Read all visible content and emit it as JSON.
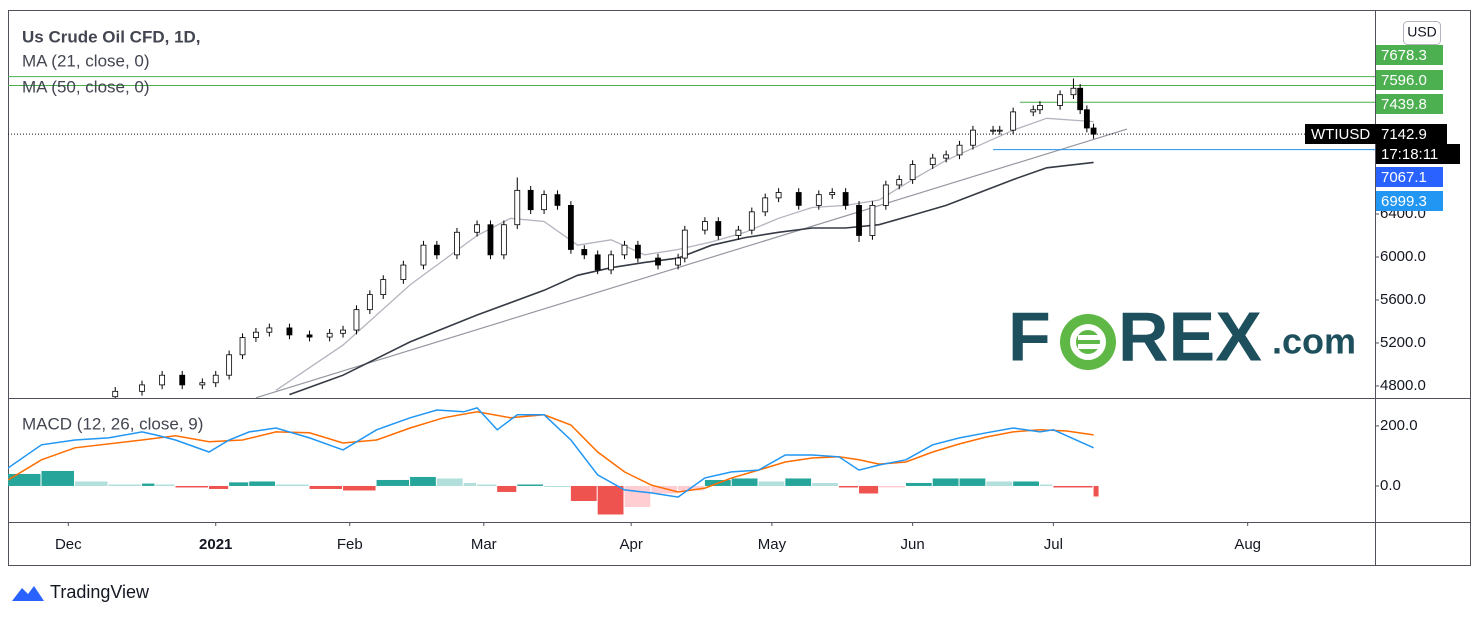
{
  "chart_data": [
    {
      "type": "candlestick",
      "title": "Us Crude Oil CFD, 1D,",
      "currency": "USD",
      "x": [
        16,
        20,
        23,
        26,
        29,
        31,
        33,
        35,
        37,
        39,
        42,
        45,
        48,
        50,
        52,
        54,
        56,
        59,
        62,
        64,
        67,
        70,
        72,
        74,
        76,
        78,
        80,
        82,
        84,
        86,
        88,
        90,
        92,
        94,
        97,
        100,
        101,
        104,
        106,
        109,
        111,
        113,
        115,
        118,
        121,
        123,
        125,
        127,
        129,
        131,
        133,
        135,
        138,
        140,
        142,
        144,
        147,
        148,
        150,
        153,
        154,
        157,
        159,
        160,
        161,
        162
      ],
      "open": [
        4700,
        4750,
        4810,
        4900,
        4810,
        4830,
        4900,
        5090,
        5250,
        5300,
        5340,
        5275,
        5255,
        5290,
        5320,
        5510,
        5650,
        5790,
        5925,
        6110,
        6020,
        6230,
        6300,
        6020,
        6300,
        6620,
        6440,
        6580,
        6480,
        6070,
        6020,
        5880,
        6020,
        6110,
        5990,
        5925,
        5990,
        6250,
        6330,
        6200,
        6250,
        6420,
        6550,
        6600,
        6480,
        6580,
        6600,
        6480,
        6200,
        6480,
        6670,
        6720,
        6860,
        6920,
        6950,
        7040,
        7180,
        7180,
        7180,
        7350,
        7370,
        7410,
        7510,
        7570,
        7370,
        7200
      ],
      "high": [
        4790,
        4850,
        4940,
        4940,
        4870,
        4940,
        5130,
        5290,
        5340,
        5380,
        5380,
        5315,
        5330,
        5360,
        5550,
        5690,
        5830,
        5965,
        6150,
        6150,
        6270,
        6340,
        6340,
        6340,
        6740,
        6660,
        6620,
        6620,
        6520,
        6110,
        6060,
        6060,
        6150,
        6150,
        6030,
        6030,
        6290,
        6370,
        6370,
        6290,
        6460,
        6590,
        6640,
        6640,
        6620,
        6640,
        6640,
        6520,
        6520,
        6710,
        6760,
        6900,
        6960,
        6990,
        7080,
        7220,
        7220,
        7220,
        7390,
        7410,
        7450,
        7550,
        7660,
        7610,
        7410,
        7240
      ],
      "low": [
        4660,
        4710,
        4770,
        4770,
        4770,
        4790,
        4860,
        5050,
        5210,
        5260,
        5235,
        5215,
        5215,
        5250,
        5280,
        5470,
        5610,
        5750,
        5885,
        5980,
        5980,
        6190,
        5980,
        5980,
        6260,
        6400,
        6400,
        6440,
        6030,
        5980,
        5840,
        5840,
        5980,
        5950,
        5885,
        5885,
        5950,
        6210,
        6160,
        6160,
        6210,
        6380,
        6510,
        6440,
        6440,
        6540,
        6440,
        6140,
        6160,
        6440,
        6630,
        6680,
        6820,
        6880,
        6910,
        7000,
        7140,
        7140,
        7140,
        7310,
        7330,
        7370,
        7470,
        7330,
        7160,
        7100
      ],
      "close": [
        4750,
        4810,
        4900,
        4810,
        4830,
        4900,
        5090,
        5250,
        5300,
        5340,
        5275,
        5255,
        5290,
        5320,
        5510,
        5650,
        5790,
        5925,
        6110,
        6020,
        6230,
        6300,
        6020,
        6300,
        6620,
        6440,
        6580,
        6480,
        6070,
        6020,
        5880,
        6020,
        6110,
        5990,
        5925,
        5990,
        6250,
        6330,
        6200,
        6250,
        6420,
        6550,
        6600,
        6480,
        6580,
        6600,
        6480,
        6200,
        6480,
        6670,
        6720,
        6860,
        6920,
        6950,
        7040,
        7180,
        7180,
        7180,
        7350,
        7370,
        7410,
        7510,
        7570,
        7370,
        7200,
        7142.9
      ],
      "up_color": "#ffffff",
      "down_color": "#000000",
      "outline_color": "#000000",
      "series": [
        {
          "name": "MA (21, close, 0)",
          "color": "#b2b5be",
          "x": [
            40,
            50,
            60,
            70,
            75,
            80,
            85,
            90,
            95,
            100,
            105,
            110,
            115,
            120,
            125,
            130,
            135,
            140,
            145,
            150,
            155,
            162
          ],
          "values": [
            4760,
            5180,
            5740,
            6200,
            6360,
            6330,
            6110,
            6160,
            6020,
            6070,
            6140,
            6230,
            6360,
            6460,
            6480,
            6530,
            6720,
            6900,
            7040,
            7180,
            7290,
            7260
          ]
        },
        {
          "name": "MA (50, close, 0)",
          "color": "#363a45",
          "x": [
            42,
            50,
            60,
            70,
            80,
            85,
            90,
            95,
            100,
            105,
            110,
            115,
            120,
            125,
            130,
            135,
            140,
            145,
            150,
            155,
            162
          ],
          "values": [
            4720,
            4900,
            5210,
            5460,
            5690,
            5830,
            5900,
            5950,
            5990,
            6110,
            6180,
            6230,
            6270,
            6270,
            6300,
            6390,
            6480,
            6600,
            6720,
            6830,
            6880
          ]
        }
      ],
      "trendline": {
        "x": [
          37,
          167
        ],
        "values": [
          4690,
          7190
        ],
        "color": "#9598a1"
      },
      "levels": [
        {
          "value": 7678.3,
          "color": "#4caf50"
        },
        {
          "value": 7596,
          "label": "7596.0",
          "color": "#4caf50"
        },
        {
          "value": 7439.8,
          "color": "#4caf50",
          "x_start": 151
        },
        {
          "value": 7067.1,
          "color": "#2962ff"
        },
        {
          "value": 6999.3,
          "color": "#2196f3",
          "x_start": 147
        }
      ],
      "price_label": {
        "name": "WTIUSD",
        "value": 7142.9,
        "countdown": "17:18:11"
      },
      "xlim": [
        0,
        204
      ],
      "ylim": [
        4688,
        8298
      ],
      "yticks": [
        {
          "value": 4800,
          "label": "4800.0"
        },
        {
          "value": 5200,
          "label": "5200.0"
        },
        {
          "value": 5600,
          "label": "5600.0"
        },
        {
          "value": 6000,
          "label": "6000.0"
        },
        {
          "value": 6400,
          "label": "6400.0"
        }
      ]
    },
    {
      "type": "macd",
      "title": "MACD (12, 26, close, 9)",
      "macd": {
        "color": "#2196f3",
        "x": [
          0,
          5,
          10,
          15,
          20,
          22,
          25,
          30,
          33,
          36,
          40,
          45,
          50,
          55,
          60,
          64,
          68,
          70,
          73,
          76,
          80,
          84,
          88,
          92,
          96,
          100,
          104,
          108,
          112,
          116,
          120,
          124,
          127,
          130,
          134,
          138,
          142,
          146,
          150,
          154,
          156,
          162
        ],
        "values": [
          60,
          137,
          153,
          160,
          180,
          170,
          153,
          113,
          153,
          180,
          193,
          160,
          120,
          187,
          227,
          253,
          247,
          260,
          187,
          237,
          237,
          153,
          37,
          -13,
          -23,
          -37,
          27,
          47,
          53,
          103,
          103,
          97,
          53,
          70,
          87,
          137,
          160,
          177,
          193,
          180,
          187,
          127
        ]
      },
      "signal": {
        "color": "#ff6d00",
        "x": [
          0,
          5,
          10,
          20,
          25,
          30,
          35,
          40,
          45,
          50,
          55,
          60,
          65,
          70,
          75,
          80,
          84,
          88,
          92,
          96,
          100,
          104,
          108,
          112,
          116,
          120,
          124,
          127,
          130,
          134,
          138,
          142,
          146,
          150,
          154,
          158,
          162
        ],
        "values": [
          20,
          87,
          127,
          153,
          167,
          147,
          153,
          180,
          177,
          143,
          153,
          193,
          227,
          247,
          227,
          237,
          203,
          113,
          47,
          3,
          -20,
          -7,
          27,
          53,
          80,
          93,
          97,
          87,
          73,
          80,
          113,
          140,
          163,
          180,
          187,
          183,
          170
        ]
      },
      "histogram": {
        "x": [
          0,
          5,
          10,
          15,
          20,
          22,
          25,
          30,
          33,
          36,
          40,
          45,
          50,
          55,
          60,
          64,
          68,
          70,
          73,
          76,
          80,
          84,
          88,
          92,
          96,
          100,
          104,
          108,
          112,
          116,
          120,
          124,
          127,
          130,
          134,
          138,
          142,
          146,
          150,
          154,
          156,
          162
        ],
        "values": [
          40,
          50,
          15,
          5,
          8,
          5,
          -5,
          -10,
          12,
          15,
          5,
          -10,
          -15,
          20,
          30,
          25,
          10,
          5,
          -20,
          5,
          0,
          -50,
          -95,
          -70,
          -25,
          -15,
          20,
          25,
          15,
          25,
          10,
          -5,
          -25,
          -5,
          10,
          25,
          25,
          15,
          15,
          5,
          -5,
          -35
        ],
        "colors": {
          "positive_rising": "#26a69a",
          "positive_falling": "#b2dfdb",
          "negative_falling": "#ef5350",
          "negative_rising": "#ffcdd2"
        }
      },
      "xlim": [
        0,
        204
      ],
      "xticks": [
        {
          "value": 9,
          "label": "Dec"
        },
        {
          "value": 31,
          "label": "2021"
        },
        {
          "value": 51,
          "label": "Feb"
        },
        {
          "value": 71,
          "label": "Mar"
        },
        {
          "value": 93,
          "label": "Apr"
        },
        {
          "value": 114,
          "label": "May"
        },
        {
          "value": 135,
          "label": "Jun"
        },
        {
          "value": 156,
          "label": "Jul"
        },
        {
          "value": 185,
          "label": "Aug"
        }
      ],
      "ylim": [
        -120,
        293
      ],
      "yticks": [
        {
          "value": 0,
          "label": "0.0"
        },
        {
          "value": 200,
          "label": "200.0"
        }
      ]
    }
  ],
  "watermark": {
    "start": "F",
    "end": "REX",
    "suffix": ".com"
  },
  "footer": {
    "brand": "TradingView"
  }
}
